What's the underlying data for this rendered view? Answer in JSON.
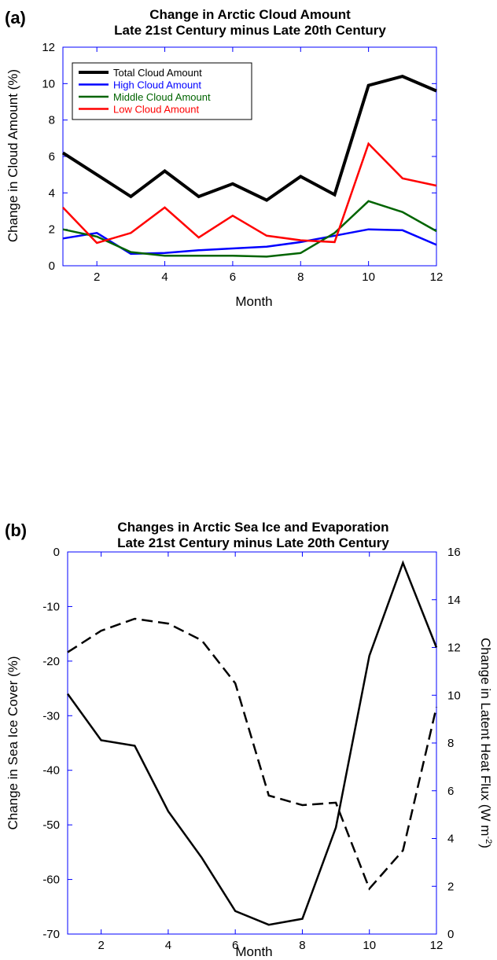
{
  "colors": {
    "axis": "#0000ff",
    "total": "#000000",
    "high": "#0000ff",
    "middle": "#006400",
    "low": "#ff0000"
  },
  "chart_data": [
    {
      "type": "line",
      "panel_label": "(a)",
      "title": "Change in Arctic Cloud Amount",
      "subtitle": "Late 21st Century minus Late 20th Century",
      "xlabel": "Month",
      "ylabel": "Change in Cloud Amount (%)",
      "xlim": [
        1,
        12
      ],
      "ylim": [
        0,
        12
      ],
      "xticks": [
        2,
        4,
        6,
        8,
        10,
        12
      ],
      "yticks": [
        0,
        2,
        4,
        6,
        8,
        10,
        12
      ],
      "legend_position": "top-left",
      "x": [
        1,
        2,
        3,
        4,
        5,
        6,
        7,
        8,
        9,
        10,
        11,
        12
      ],
      "series": [
        {
          "name": "Total Cloud Amount",
          "color": "#000000",
          "values": [
            6.2,
            5.0,
            3.8,
            5.2,
            3.8,
            4.5,
            3.6,
            4.9,
            3.9,
            9.9,
            10.4,
            9.6
          ]
        },
        {
          "name": "High Cloud Amount",
          "color": "#0000ff",
          "values": [
            1.5,
            1.8,
            0.65,
            0.7,
            0.85,
            0.95,
            1.05,
            1.3,
            1.65,
            2.0,
            1.95,
            1.15
          ]
        },
        {
          "name": "Middle Cloud Amount",
          "color": "#006400",
          "values": [
            2.0,
            1.6,
            0.75,
            0.55,
            0.55,
            0.55,
            0.5,
            0.7,
            1.8,
            3.55,
            2.95,
            1.9
          ]
        },
        {
          "name": "Low Cloud Amount",
          "color": "#ff0000",
          "values": [
            3.2,
            1.25,
            1.8,
            3.2,
            1.55,
            2.75,
            1.65,
            1.4,
            1.3,
            6.7,
            4.8,
            4.4
          ]
        }
      ]
    },
    {
      "type": "line",
      "panel_label": "(b)",
      "title": "Changes in Arctic Sea Ice and Evaporation",
      "subtitle": "Late 21st Century minus Late 20th Century",
      "xlabel": "Month",
      "ylabel": "Change in Sea Ice Cover (%)",
      "ylabel_right": [
        "Change in Latent Heat Flux (W m",
        "-2",
        ")"
      ],
      "xlim": [
        1,
        12
      ],
      "ylim": [
        -70,
        0
      ],
      "ylim_right": [
        0,
        16
      ],
      "xticks": [
        2,
        4,
        6,
        8,
        10,
        12
      ],
      "yticks": [
        0,
        -10,
        -20,
        -30,
        -40,
        -50,
        -60,
        -70
      ],
      "yticks_right": [
        0,
        2,
        4,
        6,
        8,
        10,
        12,
        14,
        16
      ],
      "x": [
        1,
        2,
        3,
        4,
        5,
        6,
        7,
        8,
        9,
        10,
        11,
        12
      ],
      "series": [
        {
          "axis": "left",
          "style": "solid",
          "color": "#000000",
          "values": [
            -26,
            -34.5,
            -35.5,
            -47.5,
            -56,
            -65.8,
            -68.3,
            -67.2,
            -50.5,
            -19,
            -2,
            -17.5
          ]
        },
        {
          "axis": "right",
          "style": "dashed",
          "color": "#000000",
          "values": [
            11.8,
            12.7,
            13.2,
            13.0,
            12.3,
            10.5,
            5.8,
            5.4,
            5.5,
            1.9,
            3.5,
            9.5
          ]
        }
      ]
    }
  ]
}
